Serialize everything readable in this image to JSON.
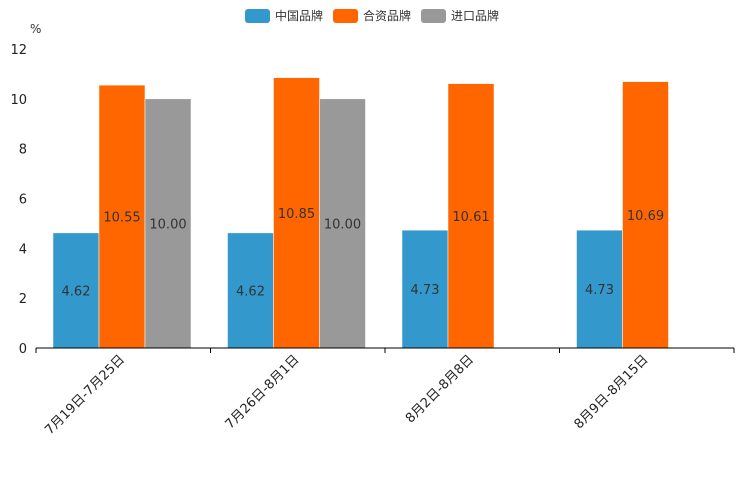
{
  "chart_data": {
    "type": "bar",
    "unit": "%",
    "categories": [
      "7月19日-7月25日",
      "7月26日-8月1日",
      "8月2日-8月8日",
      "8月9日-8月15日"
    ],
    "series": [
      {
        "name": "中国品牌",
        "color": "#3399cc",
        "values": [
          4.62,
          4.62,
          4.73,
          4.73
        ],
        "labels": [
          "4.62",
          "4.62",
          "4.73",
          "4.73"
        ]
      },
      {
        "name": "合资品牌",
        "color": "#ff6600",
        "values": [
          10.55,
          10.85,
          10.61,
          10.69
        ],
        "labels": [
          "10.55",
          "10.85",
          "10.61",
          "10.69"
        ]
      },
      {
        "name": "进口品牌",
        "color": "#999999",
        "values": [
          10.0,
          10.0,
          null,
          null
        ],
        "labels": [
          "10.00",
          "10.00",
          "",
          ""
        ]
      }
    ],
    "ylim": [
      0,
      12
    ],
    "yticks": [
      0,
      2,
      4,
      6,
      8,
      10,
      12
    ],
    "ytick_labels": [
      "0",
      "2",
      "4",
      "6",
      "8",
      "10",
      "12"
    ],
    "xlabel": "",
    "ylabel": "%",
    "legend_position": "top-center",
    "grid": false
  }
}
